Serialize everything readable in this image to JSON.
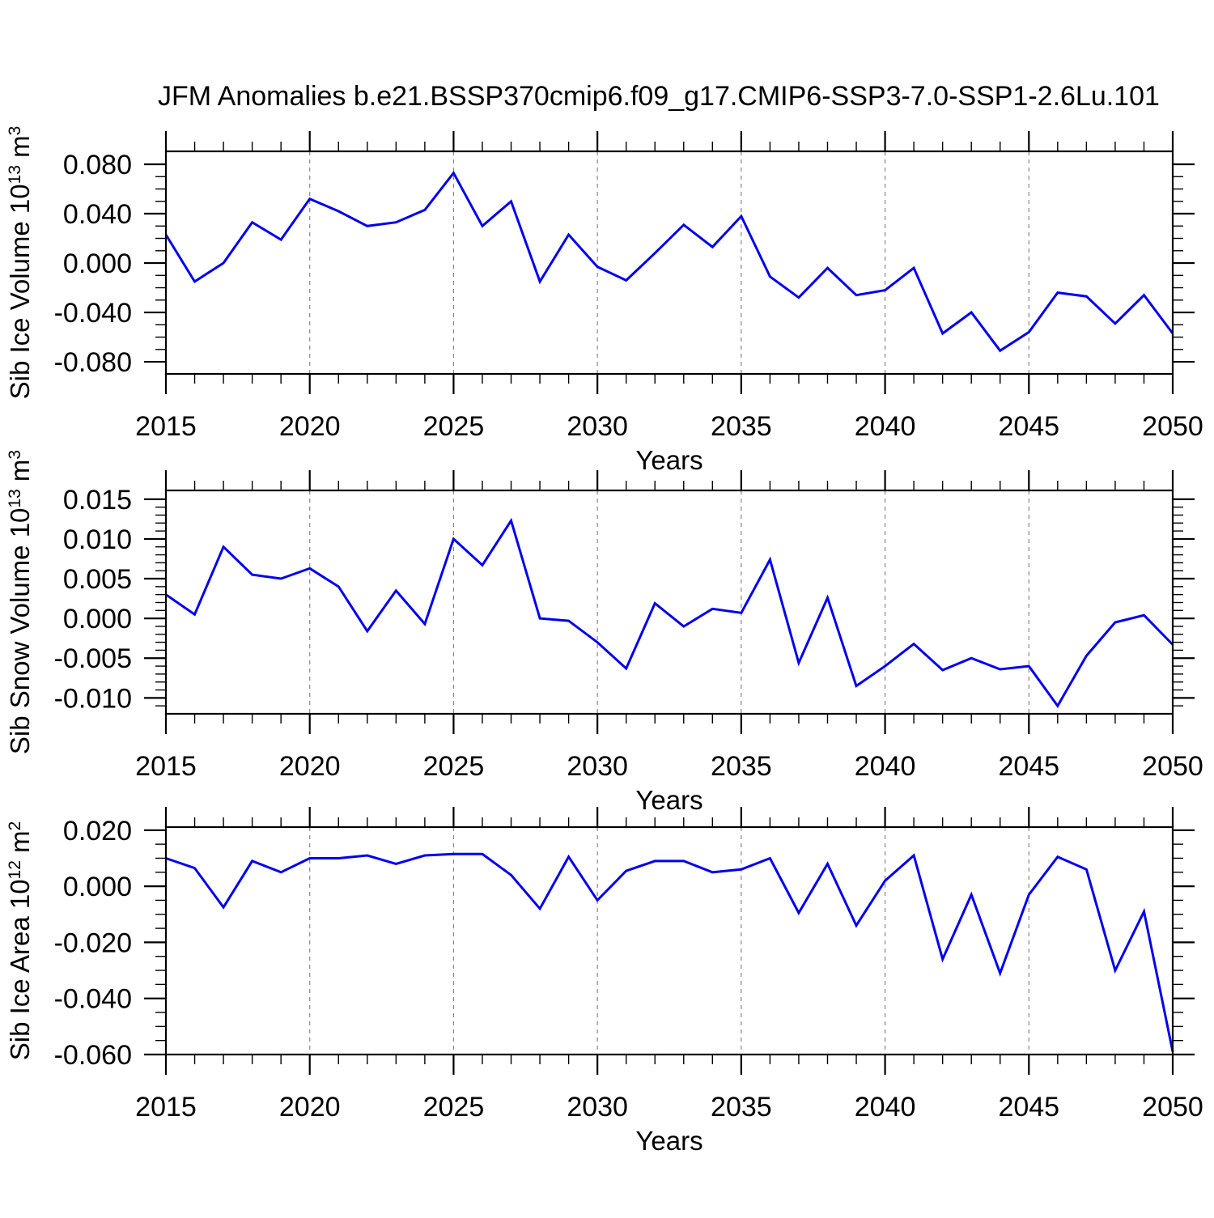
{
  "title": "JFM Anomalies b.e21.BSSP370cmip6.f09_g17.CMIP6-SSP3-7.0-SSP1-2.6Lu.101",
  "x_axis": {
    "label": "Years",
    "start": 2015,
    "end": 2050,
    "major_step": 5,
    "minor_step": 1,
    "tick_labels": [
      "2015",
      "2020",
      "2025",
      "2030",
      "2035",
      "2040",
      "2045",
      "2050"
    ]
  },
  "style": {
    "line_color": "#0000EE",
    "grid_color": "#888888",
    "axis_color": "#000000",
    "background": "#FFFFFF"
  },
  "chart_data": [
    {
      "type": "line",
      "name": "sib-ice-volume",
      "ylabel": "Sib Ice Volume 10¹³ m³",
      "ylabel_parts": [
        {
          "t": "Sib Ice Volume 10"
        },
        {
          "t": "13",
          "sup": true
        },
        {
          "t": " m"
        },
        {
          "t": "3",
          "sup": true
        }
      ],
      "xlabel": "Years",
      "x": [
        2015,
        2016,
        2017,
        2018,
        2019,
        2020,
        2021,
        2022,
        2023,
        2024,
        2025,
        2026,
        2027,
        2028,
        2029,
        2030,
        2031,
        2032,
        2033,
        2034,
        2035,
        2036,
        2037,
        2038,
        2039,
        2040,
        2041,
        2042,
        2043,
        2044,
        2045,
        2046,
        2047,
        2048,
        2049,
        2050
      ],
      "values": [
        0.023,
        -0.015,
        0.0,
        0.033,
        0.019,
        0.052,
        0.042,
        0.03,
        0.033,
        0.043,
        0.073,
        0.03,
        0.05,
        -0.015,
        0.023,
        -0.003,
        -0.014,
        0.008,
        0.031,
        0.013,
        0.038,
        -0.011,
        -0.028,
        -0.004,
        -0.026,
        -0.022,
        -0.004,
        -0.057,
        -0.04,
        -0.071,
        -0.056,
        -0.024,
        -0.027,
        -0.049,
        -0.026,
        -0.057
      ],
      "ylim": [
        -0.0898,
        0.0905
      ],
      "yticks": [
        0.08,
        0.04,
        0.0,
        -0.04,
        -0.08
      ],
      "ytick_labels": [
        "0.080",
        "0.040",
        "0.000",
        "-0.040",
        "-0.080"
      ],
      "y_minor_step": 0.01,
      "grid": "vertical-dashed"
    },
    {
      "type": "line",
      "name": "sib-snow-volume",
      "ylabel": "Sib Snow Volume 10¹³ m³",
      "ylabel_parts": [
        {
          "t": "Sib Snow Volume 10"
        },
        {
          "t": "13",
          "sup": true
        },
        {
          "t": " m"
        },
        {
          "t": "3",
          "sup": true
        }
      ],
      "xlabel": "Years",
      "x": [
        2015,
        2016,
        2017,
        2018,
        2019,
        2020,
        2021,
        2022,
        2023,
        2024,
        2025,
        2026,
        2027,
        2028,
        2029,
        2030,
        2031,
        2032,
        2033,
        2034,
        2035,
        2036,
        2037,
        2038,
        2039,
        2040,
        2041,
        2042,
        2043,
        2044,
        2045,
        2046,
        2047,
        2048,
        2049,
        2050
      ],
      "values": [
        0.003,
        0.0005,
        0.009,
        0.0055,
        0.005,
        0.0063,
        0.004,
        -0.0016,
        0.0035,
        -0.0007,
        0.01,
        0.0067,
        0.0123,
        0.0,
        -0.0003,
        -0.003,
        -0.0063,
        0.0019,
        -0.001,
        0.0012,
        0.0007,
        0.0074,
        -0.0056,
        0.0026,
        -0.0085,
        -0.006,
        -0.0032,
        -0.0065,
        -0.005,
        -0.0064,
        -0.006,
        -0.011,
        -0.0047,
        -0.0005,
        0.0004,
        -0.0033
      ],
      "ylim": [
        -0.012,
        0.0161
      ],
      "yticks": [
        0.015,
        0.01,
        0.005,
        0.0,
        -0.005,
        -0.01
      ],
      "ytick_labels": [
        "0.015",
        "0.010",
        "0.005",
        "0.000",
        "-0.005",
        "-0.010"
      ],
      "y_minor_step": 0.001,
      "grid": "vertical-dashed"
    },
    {
      "type": "line",
      "name": "sib-ice-area",
      "ylabel": "Sib Ice Area 10¹² m²",
      "ylabel_parts": [
        {
          "t": "Sib Ice Area 10"
        },
        {
          "t": "12",
          "sup": true
        },
        {
          "t": " m"
        },
        {
          "t": "2",
          "sup": true
        }
      ],
      "xlabel": "Years",
      "x": [
        2015,
        2016,
        2017,
        2018,
        2019,
        2020,
        2021,
        2022,
        2023,
        2024,
        2025,
        2026,
        2027,
        2028,
        2029,
        2030,
        2031,
        2032,
        2033,
        2034,
        2035,
        2036,
        2037,
        2038,
        2039,
        2040,
        2041,
        2042,
        2043,
        2044,
        2045,
        2046,
        2047,
        2048,
        2049,
        2050
      ],
      "values": [
        0.01,
        0.0065,
        -0.0075,
        0.009,
        0.005,
        0.01,
        0.01,
        0.011,
        0.008,
        0.011,
        0.0115,
        0.0115,
        0.004,
        -0.008,
        0.0105,
        -0.005,
        0.0055,
        0.009,
        0.009,
        0.005,
        0.006,
        0.01,
        -0.0095,
        0.008,
        -0.014,
        0.002,
        0.011,
        -0.026,
        -0.003,
        -0.031,
        -0.003,
        0.0105,
        0.006,
        -0.03,
        -0.009,
        -0.059
      ],
      "ylim": [
        -0.06,
        0.0211
      ],
      "yticks": [
        0.02,
        0.0,
        -0.02,
        -0.04,
        -0.06
      ],
      "ytick_labels": [
        "0.020",
        "0.000",
        "-0.020",
        "-0.040",
        "-0.060"
      ],
      "y_minor_step": 0.005,
      "grid": "vertical-dashed"
    }
  ]
}
